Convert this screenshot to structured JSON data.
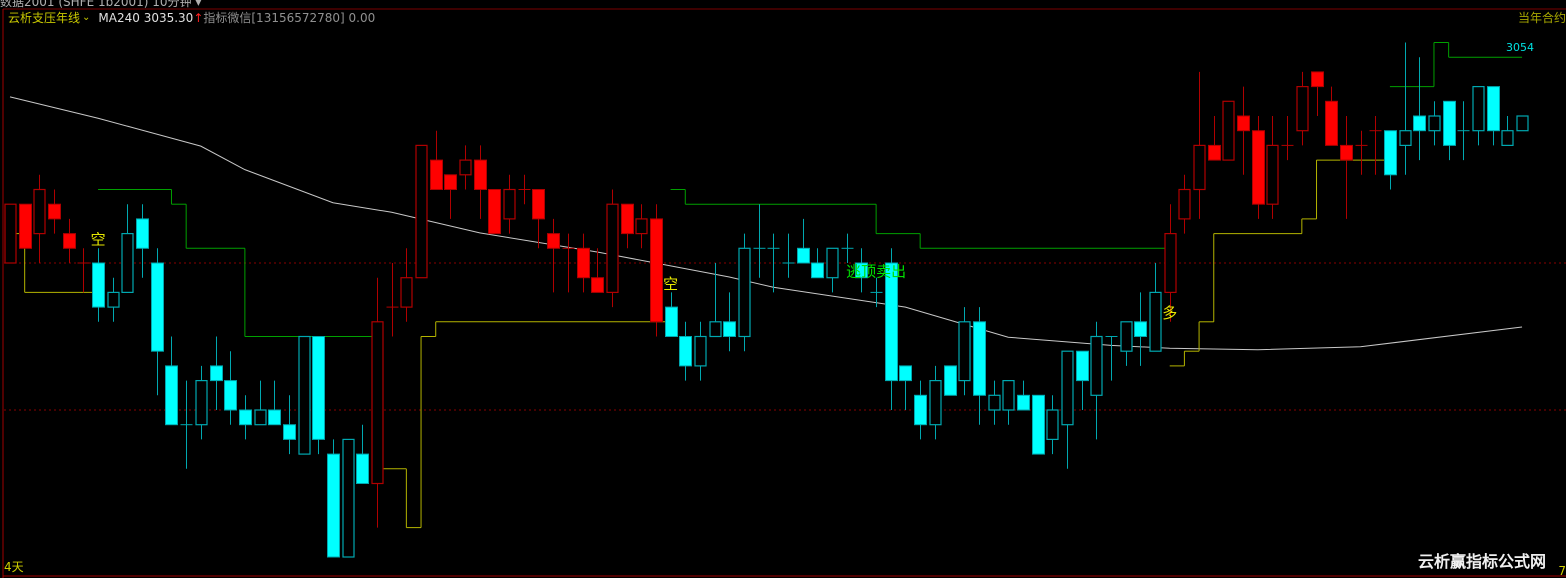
{
  "header": {
    "window_title": "数据2001 (SHFE 1b2001)  10分钟 ▾",
    "indicator_name": "云析支压年线",
    "indicator_dropdown_icon": "chevron-down-icon",
    "ma_label": "MA240 3035.30",
    "ma_arrow": "↑",
    "wechat_label": "指标微信[13156572780] 0.00",
    "contract_label": "当年合约"
  },
  "footer": {
    "left_label": "4天",
    "right_label": "7",
    "watermark": "云析赢指标公式网"
  },
  "colors": {
    "up_red": "#ff0000",
    "down_cyan": "#00ffff",
    "resistance_line": "#00a000",
    "support_line": "#b4b400",
    "ma_line": "#c8c8c8",
    "grid_dotted": "#8a0000",
    "frame": "#a00000"
  },
  "chart_data": {
    "type": "candlestick",
    "title": "",
    "xlabel": "",
    "ylabel": "",
    "grid": false,
    "reference_lines": [
      3044,
      3024
    ],
    "candles_ohlc": [
      [
        3044,
        3052,
        3044,
        3052
      ],
      [
        3052,
        3052,
        3046,
        3046
      ],
      [
        3048,
        3056,
        3044,
        3054
      ],
      [
        3052,
        3054,
        3048,
        3050
      ],
      [
        3048,
        3050,
        3044,
        3046
      ],
      [
        3044,
        3046,
        3040,
        3044
      ],
      [
        3044,
        3046,
        3036,
        3038
      ],
      [
        3038,
        3042,
        3036,
        3040
      ],
      [
        3040,
        3052,
        3040,
        3048
      ],
      [
        3050,
        3052,
        3042,
        3046
      ],
      [
        3044,
        3046,
        3026,
        3032
      ],
      [
        3030,
        3034,
        3022,
        3022
      ],
      [
        3022,
        3028,
        3016,
        3022
      ],
      [
        3022,
        3030,
        3020,
        3028
      ],
      [
        3030,
        3034,
        3024,
        3028
      ],
      [
        3028,
        3032,
        3022,
        3024
      ],
      [
        3024,
        3026,
        3020,
        3022
      ],
      [
        3022,
        3028,
        3022,
        3024
      ],
      [
        3024,
        3028,
        3022,
        3022
      ],
      [
        3022,
        3026,
        3018,
        3020
      ],
      [
        3018,
        3034,
        3018,
        3034
      ],
      [
        3034,
        3034,
        3018,
        3020
      ],
      [
        3018,
        3020,
        3004,
        3004
      ],
      [
        3004,
        3020,
        3004,
        3020
      ],
      [
        3018,
        3022,
        3014,
        3014
      ],
      [
        3014,
        3042,
        3008,
        3036
      ],
      [
        3038,
        3044,
        3034,
        3038
      ],
      [
        3038,
        3046,
        3036,
        3042
      ],
      [
        3042,
        3060,
        3042,
        3060
      ],
      [
        3058,
        3062,
        3054,
        3054
      ],
      [
        3056,
        3056,
        3050,
        3054
      ],
      [
        3056,
        3060,
        3054,
        3058
      ],
      [
        3058,
        3060,
        3050,
        3054
      ],
      [
        3054,
        3054,
        3048,
        3048
      ],
      [
        3050,
        3056,
        3048,
        3054
      ],
      [
        3054,
        3056,
        3052,
        3054
      ],
      [
        3054,
        3054,
        3046,
        3050
      ],
      [
        3048,
        3050,
        3040,
        3046
      ],
      [
        3046,
        3048,
        3040,
        3046
      ],
      [
        3046,
        3048,
        3040,
        3042
      ],
      [
        3042,
        3046,
        3040,
        3040
      ],
      [
        3040,
        3054,
        3038,
        3052
      ],
      [
        3052,
        3052,
        3046,
        3048
      ],
      [
        3048,
        3052,
        3046,
        3050
      ],
      [
        3050,
        3052,
        3034,
        3036
      ],
      [
        3038,
        3040,
        3034,
        3034
      ],
      [
        3034,
        3036,
        3028,
        3030
      ],
      [
        3030,
        3036,
        3028,
        3034
      ],
      [
        3034,
        3044,
        3034,
        3036
      ],
      [
        3036,
        3040,
        3032,
        3034
      ],
      [
        3034,
        3048,
        3032,
        3046
      ],
      [
        3046,
        3052,
        3042,
        3046
      ],
      [
        3046,
        3048,
        3040,
        3046
      ],
      [
        3044,
        3048,
        3042,
        3044
      ],
      [
        3046,
        3050,
        3044,
        3044
      ],
      [
        3044,
        3046,
        3042,
        3042
      ],
      [
        3042,
        3046,
        3040,
        3046
      ],
      [
        3046,
        3048,
        3044,
        3046
      ],
      [
        3044,
        3046,
        3040,
        3042
      ],
      [
        3040,
        3042,
        3038,
        3040
      ],
      [
        3044,
        3046,
        3024,
        3028
      ],
      [
        3030,
        3030,
        3024,
        3028
      ],
      [
        3026,
        3028,
        3020,
        3022
      ],
      [
        3022,
        3030,
        3020,
        3028
      ],
      [
        3030,
        3030,
        3026,
        3026
      ],
      [
        3028,
        3038,
        3026,
        3036
      ],
      [
        3036,
        3038,
        3022,
        3026
      ],
      [
        3024,
        3028,
        3022,
        3026
      ],
      [
        3024,
        3028,
        3022,
        3028
      ],
      [
        3026,
        3028,
        3024,
        3024
      ],
      [
        3026,
        3026,
        3018,
        3018
      ],
      [
        3020,
        3026,
        3018,
        3024
      ],
      [
        3022,
        3032,
        3016,
        3032
      ],
      [
        3032,
        3032,
        3024,
        3028
      ],
      [
        3026,
        3036,
        3020,
        3034
      ],
      [
        3034,
        3034,
        3028,
        3034
      ],
      [
        3032,
        3036,
        3030,
        3036
      ],
      [
        3036,
        3040,
        3030,
        3034
      ],
      [
        3032,
        3044,
        3032,
        3040
      ],
      [
        3040,
        3052,
        3036,
        3048
      ],
      [
        3050,
        3056,
        3048,
        3054
      ],
      [
        3054,
        3070,
        3050,
        3060
      ],
      [
        3060,
        3064,
        3058,
        3058
      ],
      [
        3058,
        3066,
        3058,
        3066
      ],
      [
        3064,
        3068,
        3056,
        3062
      ],
      [
        3062,
        3064,
        3050,
        3052
      ],
      [
        3052,
        3064,
        3050,
        3060
      ],
      [
        3060,
        3064,
        3058,
        3060
      ],
      [
        3062,
        3070,
        3060,
        3068
      ],
      [
        3070,
        3070,
        3064,
        3068
      ],
      [
        3066,
        3068,
        3060,
        3060
      ],
      [
        3060,
        3064,
        3050,
        3058
      ],
      [
        3060,
        3062,
        3056,
        3060
      ],
      [
        3062,
        3064,
        3056,
        3062
      ],
      [
        3062,
        3062,
        3054,
        3056
      ],
      [
        3060,
        3074,
        3056,
        3062
      ],
      [
        3064,
        3072,
        3058,
        3062
      ],
      [
        3062,
        3066,
        3060,
        3064
      ],
      [
        3066,
        3066,
        3058,
        3060
      ],
      [
        3062,
        3066,
        3058,
        3062
      ],
      [
        3062,
        3068,
        3060,
        3068
      ],
      [
        3068,
        3068,
        3060,
        3062
      ],
      [
        3060,
        3064,
        3060,
        3062
      ],
      [
        3062,
        3064,
        3062,
        3064
      ]
    ],
    "candle_color_runs": [
      {
        "from": 0,
        "to": 5,
        "color": "red"
      },
      {
        "from": 6,
        "to": 24,
        "color": "cyan"
      },
      {
        "from": 25,
        "to": 44,
        "color": "red"
      },
      {
        "from": 45,
        "to": 78,
        "color": "cyan"
      },
      {
        "from": 79,
        "to": 93,
        "color": "red"
      },
      {
        "from": 94,
        "to": 103,
        "color": "cyan"
      }
    ],
    "ma240": {
      "name": "MA240",
      "points": [
        [
          0,
          3066.6
        ],
        [
          6,
          3063.7
        ],
        [
          13,
          3059.9
        ],
        [
          16,
          3056.7
        ],
        [
          22,
          3052.2
        ],
        [
          26,
          3050.9
        ],
        [
          32,
          3048.1
        ],
        [
          40,
          3045.5
        ],
        [
          49,
          3042.1
        ],
        [
          52,
          3040.7
        ],
        [
          61,
          3038.0
        ],
        [
          68,
          3033.9
        ],
        [
          75,
          3032.8
        ],
        [
          79,
          3032.4
        ],
        [
          85,
          3032.2
        ],
        [
          92,
          3032.6
        ],
        [
          103,
          3035.3
        ]
      ]
    },
    "resistance_steps": [
      {
        "from": 6,
        "to": 10,
        "value": 3054
      },
      {
        "from": 11,
        "to": 11,
        "value": 3052
      },
      {
        "from": 12,
        "to": 15,
        "value": 3046
      },
      {
        "from": 16,
        "to": 24,
        "value": 3034
      },
      {
        "from": 45,
        "to": 45,
        "value": 3054
      },
      {
        "from": 46,
        "to": 58,
        "value": 3052
      },
      {
        "from": 59,
        "to": 61,
        "value": 3048
      },
      {
        "from": 62,
        "to": 78,
        "value": 3046
      },
      {
        "from": 94,
        "to": 96,
        "value": 3068
      },
      {
        "from": 97,
        "to": 97,
        "value": 3074
      },
      {
        "from": 98,
        "to": 102,
        "value": 3072
      }
    ],
    "support_steps": [
      {
        "from": 0,
        "to": 0,
        "value": 3048
      },
      {
        "from": 1,
        "to": 5,
        "value": 3040
      },
      {
        "from": 25,
        "to": 26,
        "value": 3016
      },
      {
        "from": 27,
        "to": 27,
        "value": 3008
      },
      {
        "from": 28,
        "to": 28,
        "value": 3034
      },
      {
        "from": 29,
        "to": 44,
        "value": 3036
      },
      {
        "from": 79,
        "to": 79,
        "value": 3030
      },
      {
        "from": 80,
        "to": 80,
        "value": 3032
      },
      {
        "from": 81,
        "to": 81,
        "value": 3036
      },
      {
        "from": 82,
        "to": 87,
        "value": 3048
      },
      {
        "from": 88,
        "to": 88,
        "value": 3050
      },
      {
        "from": 89,
        "to": 93,
        "value": 3058
      }
    ],
    "resistance_label": "3054",
    "signals": [
      {
        "text": "空",
        "index": 6,
        "price": 3047.3,
        "color": "#e8e800"
      },
      {
        "text": "空",
        "index": 45,
        "price": 3041.3,
        "color": "#e8e800"
      },
      {
        "text": "逃顶卖出",
        "index": 59,
        "price": 3043,
        "color": "#00e000"
      },
      {
        "text": "多",
        "index": 79,
        "price": 3037.3,
        "color": "#e8e800"
      }
    ]
  }
}
